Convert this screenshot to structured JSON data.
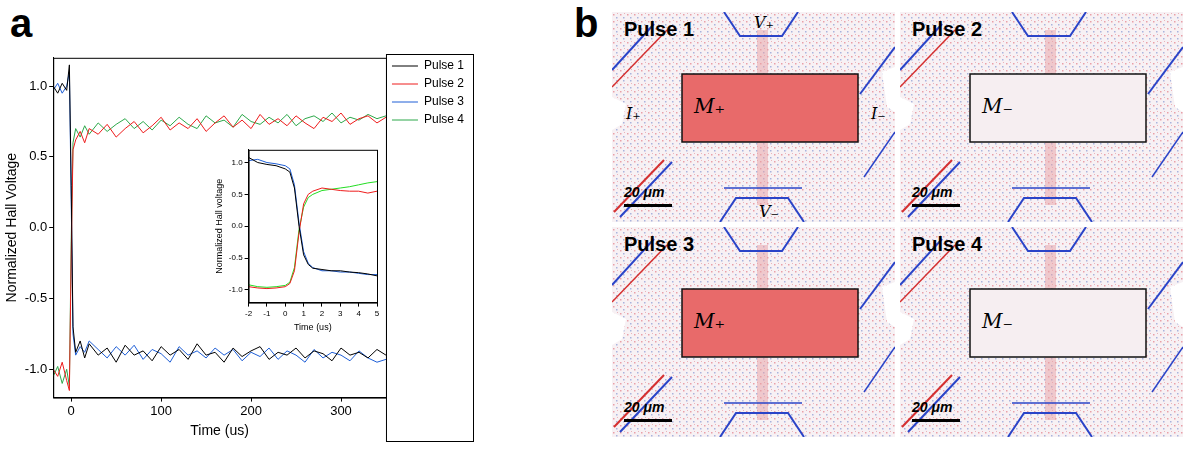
{
  "chart_data": [
    {
      "panel_label": "a",
      "type": "line",
      "x_label": "Time (us)",
      "y_label": "Normalized Hall Voltage",
      "xlim": [
        -20,
        350
      ],
      "xticks": [
        0,
        100,
        200,
        300
      ],
      "ylim": [
        -1.2,
        1.2
      ],
      "yticks": [
        {
          "value": -1,
          "label": "-1.0"
        },
        {
          "value": -0.5,
          "label": "-0.5"
        },
        {
          "value": 0,
          "label": "0.0"
        },
        {
          "value": 0.5,
          "label": "0.5"
        },
        {
          "value": 1,
          "label": "1.0"
        }
      ],
      "grid": false,
      "legend": "right",
      "x": [
        -20,
        -15,
        -10,
        -5,
        -2,
        0,
        2,
        5,
        10,
        15,
        20,
        30,
        40,
        50,
        60,
        70,
        80,
        90,
        100,
        110,
        120,
        130,
        140,
        150,
        160,
        170,
        180,
        190,
        200,
        210,
        220,
        230,
        240,
        250,
        260,
        270,
        280,
        290,
        300,
        310,
        320,
        330,
        340,
        350
      ],
      "series": [
        {
          "name": "Pulse 1",
          "color": "#000000",
          "values": [
            1.0,
            0.95,
            1.02,
            0.97,
            1.15,
            0.3,
            -0.7,
            -0.88,
            -0.8,
            -0.92,
            -0.82,
            -0.9,
            -0.85,
            -0.95,
            -0.83,
            -0.9,
            -0.87,
            -0.94,
            -0.84,
            -0.9,
            -0.86,
            -0.93,
            -0.82,
            -0.9,
            -0.88,
            -0.95,
            -0.85,
            -0.91,
            -0.87,
            -0.84,
            -0.93,
            -0.88,
            -0.9,
            -0.85,
            -0.92,
            -0.87,
            -0.89,
            -0.94,
            -0.85,
            -0.9,
            -0.88,
            -0.92,
            -0.86,
            -0.9
          ]
        },
        {
          "name": "Pulse 2",
          "color": "#ee1c1c",
          "values": [
            -1.0,
            -1.05,
            -0.95,
            -1.08,
            -1.15,
            -0.2,
            0.55,
            0.62,
            0.68,
            0.6,
            0.7,
            0.66,
            0.73,
            0.64,
            0.7,
            0.75,
            0.67,
            0.72,
            0.78,
            0.69,
            0.74,
            0.7,
            0.77,
            0.68,
            0.74,
            0.79,
            0.71,
            0.76,
            0.7,
            0.8,
            0.73,
            0.77,
            0.72,
            0.79,
            0.74,
            0.7,
            0.78,
            0.75,
            0.81,
            0.73,
            0.77,
            0.79,
            0.74,
            0.78
          ]
        },
        {
          "name": "Pulse 3",
          "color": "#1f5fd6",
          "values": [
            0.97,
            1.02,
            0.95,
            1.0,
            1.1,
            0.2,
            -0.75,
            -0.9,
            -0.84,
            -0.88,
            -0.8,
            -0.86,
            -0.92,
            -0.84,
            -0.9,
            -0.83,
            -0.93,
            -0.86,
            -0.89,
            -0.95,
            -0.84,
            -0.9,
            -0.87,
            -0.92,
            -0.85,
            -0.9,
            -0.86,
            -0.94,
            -0.88,
            -0.91,
            -0.85,
            -0.93,
            -0.87,
            -0.9,
            -0.95,
            -0.86,
            -0.92,
            -0.88,
            -0.9,
            -0.94,
            -0.87,
            -0.92,
            -0.95,
            -0.93
          ]
        },
        {
          "name": "Pulse 4",
          "color": "#2ca84a",
          "values": [
            -1.05,
            -0.98,
            -1.1,
            -1.0,
            -1.12,
            -0.1,
            0.6,
            0.7,
            0.64,
            0.72,
            0.66,
            0.74,
            0.68,
            0.73,
            0.77,
            0.7,
            0.75,
            0.69,
            0.76,
            0.72,
            0.78,
            0.73,
            0.7,
            0.79,
            0.74,
            0.76,
            0.71,
            0.8,
            0.75,
            0.73,
            0.78,
            0.74,
            0.8,
            0.72,
            0.77,
            0.79,
            0.75,
            0.81,
            0.74,
            0.78,
            0.76,
            0.8,
            0.77,
            0.79
          ]
        }
      ]
    },
    {
      "type": "line",
      "x_label": "Time (us)",
      "y_label": "Normalized Hall voltage",
      "xlim": [
        -2,
        5
      ],
      "xticks": [
        -2,
        -1,
        0,
        1,
        2,
        3,
        4,
        5
      ],
      "ylim": [
        -1.2,
        1.2
      ],
      "yticks": [
        {
          "value": -1,
          "label": "-1.0"
        },
        {
          "value": -0.5,
          "label": "-0.5"
        },
        {
          "value": 0,
          "label": "0.0"
        },
        {
          "value": 0.5,
          "label": "0.5"
        },
        {
          "value": 1,
          "label": "1.0"
        }
      ],
      "grid": false,
      "x": [
        -2,
        -1.5,
        -1,
        -0.5,
        0,
        0.25,
        0.5,
        0.75,
        1,
        1.25,
        1.5,
        2,
        2.5,
        3,
        3.5,
        4,
        4.5,
        5
      ],
      "series": [
        {
          "name": "Pulse 1",
          "color": "#000000",
          "values": [
            1.08,
            1.0,
            0.97,
            0.95,
            0.9,
            0.85,
            0.6,
            0.0,
            -0.45,
            -0.6,
            -0.66,
            -0.68,
            -0.7,
            -0.7,
            -0.72,
            -0.73,
            -0.75,
            -0.78
          ]
        },
        {
          "name": "Pulse 2",
          "color": "#ee1c1c",
          "values": [
            -0.95,
            -0.97,
            -0.98,
            -0.97,
            -0.95,
            -0.9,
            -0.7,
            -0.1,
            0.35,
            0.5,
            0.55,
            0.6,
            0.58,
            0.56,
            0.55,
            0.55,
            0.52,
            0.55
          ]
        },
        {
          "name": "Pulse 3",
          "color": "#1f5fd6",
          "values": [
            1.03,
            1.05,
            1.0,
            0.98,
            0.95,
            0.9,
            0.65,
            0.05,
            -0.4,
            -0.58,
            -0.65,
            -0.7,
            -0.7,
            -0.72,
            -0.72,
            -0.74,
            -0.76,
            -0.76
          ]
        },
        {
          "name": "Pulse 4",
          "color": "#22dd22",
          "values": [
            -0.92,
            -0.95,
            -0.96,
            -0.95,
            -0.93,
            -0.88,
            -0.65,
            -0.05,
            0.3,
            0.45,
            0.5,
            0.56,
            0.58,
            0.6,
            0.62,
            0.65,
            0.68,
            0.7
          ]
        }
      ]
    }
  ],
  "panel_b": {
    "panel_label": "b",
    "scale_bar": "20 μm",
    "images": [
      {
        "title": "Pulse 1",
        "state": "M₊",
        "color": "#e86a6a",
        "terminals": [
          "V₊",
          "V₋",
          "I₊",
          "I₋"
        ]
      },
      {
        "title": "Pulse 2",
        "state": "M₋",
        "color": "#f6eef1"
      },
      {
        "title": "Pulse 3",
        "state": "M₊",
        "color": "#e86a6a"
      },
      {
        "title": "Pulse 4",
        "state": "M₋",
        "color": "#f6eef1"
      }
    ]
  }
}
